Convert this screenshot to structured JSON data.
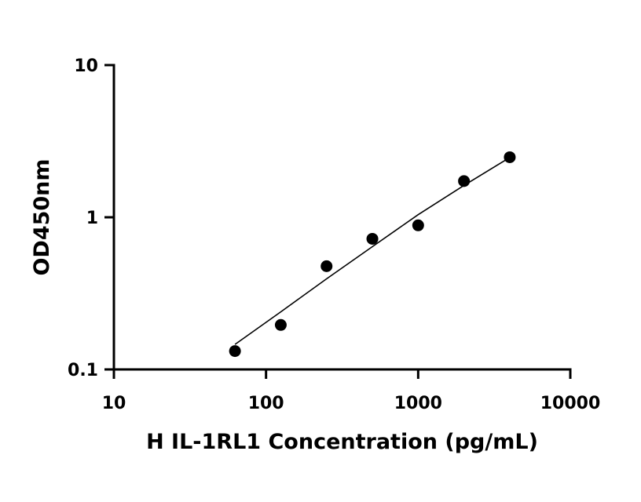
{
  "chart_data": {
    "type": "scatter",
    "title": "",
    "xlabel": "H IL-1RL1 Concentration (pg/mL)",
    "ylabel": "OD450nm",
    "xscale": "log",
    "yscale": "log",
    "xlim": [
      10,
      10000
    ],
    "ylim": [
      0.1,
      10
    ],
    "grid": false,
    "legend": "none",
    "x_ticks": [
      "10",
      "100",
      "1000",
      "10000"
    ],
    "y_ticks": [
      "0.1",
      "1",
      "10"
    ],
    "series": [
      {
        "points": [
          {
            "x": 62.5,
            "y": 0.132
          },
          {
            "x": 125,
            "y": 0.196
          },
          {
            "x": 250,
            "y": 0.477
          },
          {
            "x": 500,
            "y": 0.722
          },
          {
            "x": 1000,
            "y": 0.885
          },
          {
            "x": 2000,
            "y": 1.73
          },
          {
            "x": 4000,
            "y": 2.48
          }
        ],
        "color": "#000000"
      }
    ],
    "fit_curve": {
      "x": [
        62.5,
        125,
        250,
        500,
        1000,
        2000,
        4000
      ],
      "y": [
        0.146,
        0.239,
        0.394,
        0.641,
        1.04,
        1.62,
        2.47
      ]
    }
  }
}
